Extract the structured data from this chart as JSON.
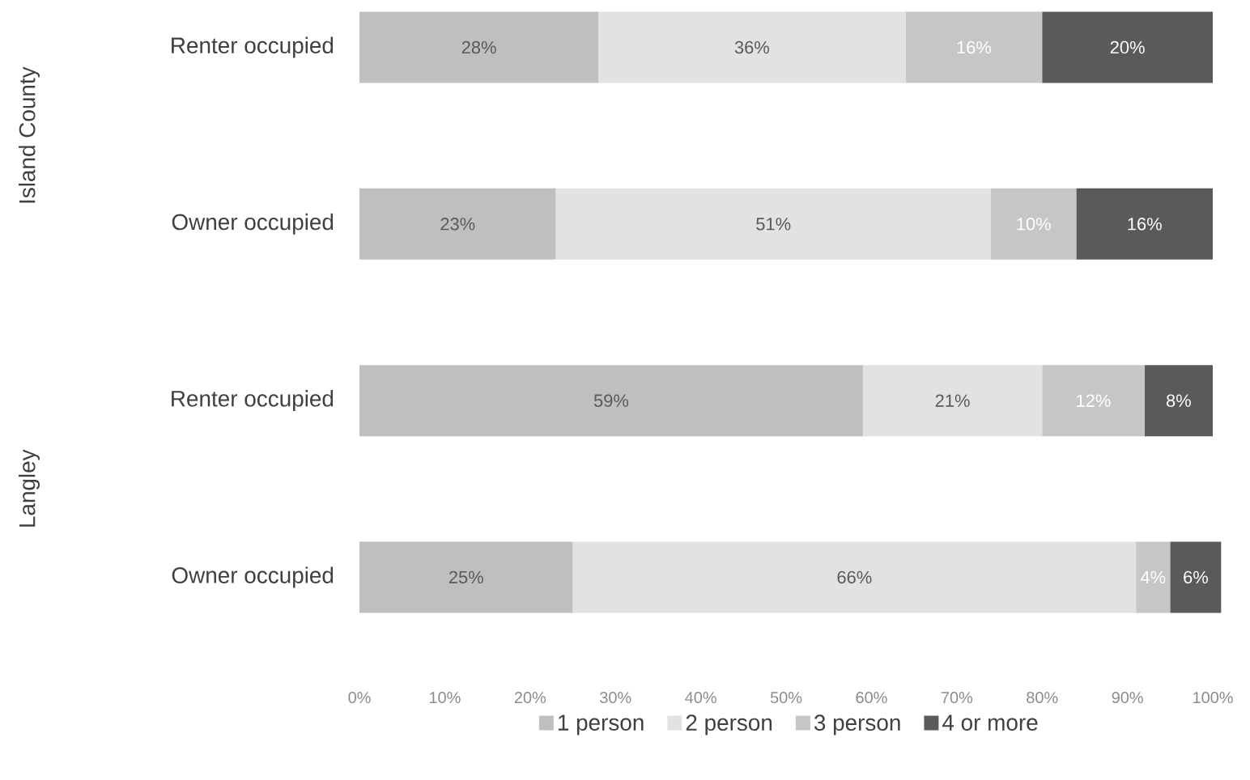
{
  "chart_data": {
    "type": "bar",
    "orientation": "horizontal",
    "stacked": true,
    "categories": [
      "Renter occupied",
      "Owner occupied",
      "Renter occupied",
      "Owner occupied"
    ],
    "series": [
      {
        "name": "1 person",
        "color": "#bfbfbf",
        "values": [
          28,
          23,
          59,
          25
        ],
        "value_labels": [
          "28%",
          "23%",
          "59%",
          "25%"
        ]
      },
      {
        "name": "2 person",
        "color": "#e2e2e2",
        "values": [
          36,
          51,
          21,
          66
        ],
        "value_labels": [
          "36%",
          "51%",
          "21%",
          "66%"
        ]
      },
      {
        "name": "3 person",
        "color": "#c6c6c6",
        "values": [
          16,
          10,
          12,
          4
        ],
        "value_labels": [
          "16%",
          "10%",
          "12%",
          "4%"
        ]
      },
      {
        "name": "4 or more",
        "color": "#5a5a5a",
        "values": [
          20,
          16,
          8,
          6
        ],
        "value_labels": [
          "20%",
          "16%",
          "8%",
          "6%"
        ]
      }
    ],
    "xlim": [
      0,
      101
    ],
    "xticks": [
      {
        "value": 0,
        "label": "0%"
      },
      {
        "value": 10,
        "label": "10%"
      },
      {
        "value": 20,
        "label": "20%"
      },
      {
        "value": 30,
        "label": "30%"
      },
      {
        "value": 40,
        "label": "40%"
      },
      {
        "value": 50,
        "label": "50%"
      },
      {
        "value": 60,
        "label": "60%"
      },
      {
        "value": 70,
        "label": "70%"
      },
      {
        "value": 80,
        "label": "80%"
      },
      {
        "value": 90,
        "label": "90%"
      },
      {
        "value": 100,
        "label": "100%"
      }
    ],
    "annotations": [
      "Island County",
      "Langley"
    ],
    "legend": "bottom",
    "grid": false
  }
}
